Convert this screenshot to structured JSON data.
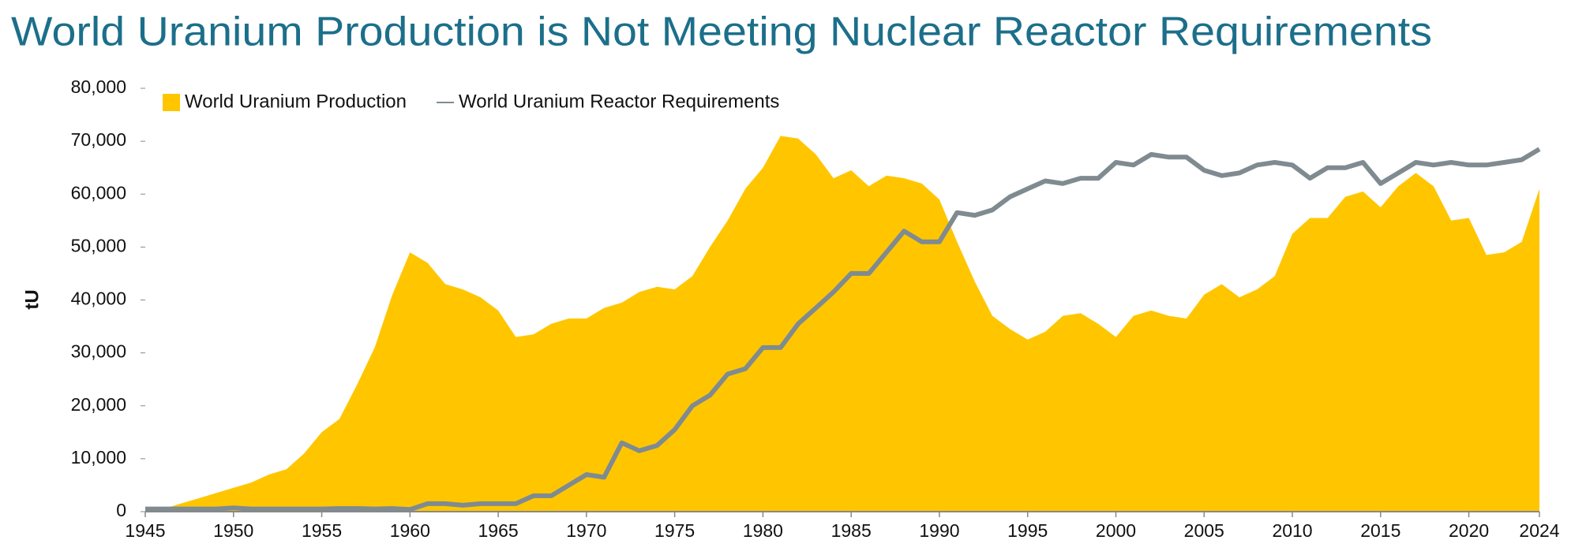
{
  "chart_data": {
    "type": "area-line",
    "title": "World Uranium Production is Not Meeting Nuclear Reactor Requirements",
    "y_label": "tU",
    "x": [
      1945,
      1946,
      1947,
      1948,
      1949,
      1950,
      1951,
      1952,
      1953,
      1954,
      1955,
      1956,
      1957,
      1958,
      1959,
      1960,
      1961,
      1962,
      1963,
      1964,
      1965,
      1966,
      1967,
      1968,
      1969,
      1970,
      1971,
      1972,
      1973,
      1974,
      1975,
      1976,
      1977,
      1978,
      1979,
      1980,
      1981,
      1982,
      1983,
      1984,
      1985,
      1986,
      1987,
      1988,
      1989,
      1990,
      1991,
      1992,
      1993,
      1994,
      1995,
      1996,
      1997,
      1998,
      1999,
      2000,
      2001,
      2002,
      2003,
      2004,
      2005,
      2006,
      2007,
      2008,
      2009,
      2010,
      2011,
      2012,
      2013,
      2014,
      2015,
      2016,
      2017,
      2018,
      2019,
      2020,
      2021,
      2022,
      2023,
      2024
    ],
    "series": [
      {
        "name": "World Uranium Production",
        "color": "#ffc600",
        "kind": "area",
        "values": [
          500,
          500,
          1500,
          2500,
          3500,
          4500,
          5500,
          7000,
          8000,
          11000,
          15000,
          17500,
          24000,
          31000,
          41000,
          49000,
          47000,
          43000,
          42000,
          40500,
          38000,
          33000,
          33500,
          35500,
          36500,
          36500,
          38500,
          39500,
          41500,
          42500,
          42000,
          44500,
          50000,
          55000,
          61000,
          65000,
          71000,
          70500,
          67500,
          63000,
          64500,
          61500,
          63500,
          63000,
          62000,
          59000,
          51000,
          43500,
          37000,
          34500,
          32500,
          34000,
          37000,
          37500,
          35500,
          33000,
          37000,
          38000,
          37000,
          36500,
          41000,
          43000,
          40500,
          42000,
          44500,
          52500,
          55500,
          55500,
          59500,
          60500,
          57500,
          61500,
          64000,
          61500,
          55000,
          55500,
          48500,
          49000,
          51000,
          61000
        ]
      },
      {
        "name": "World Uranium Reactor Requirements",
        "color": "#7f8b90",
        "kind": "line",
        "values": [
          500,
          500,
          500,
          500,
          500,
          700,
          500,
          500,
          500,
          500,
          500,
          600,
          600,
          500,
          600,
          400,
          1500,
          1500,
          1200,
          1500,
          1500,
          1500,
          3000,
          3000,
          5000,
          7000,
          6500,
          13000,
          11500,
          12500,
          15500,
          20000,
          22000,
          26000,
          27000,
          31000,
          31000,
          35500,
          38500,
          41500,
          45000,
          45000,
          49000,
          53000,
          51000,
          51000,
          56500,
          56000,
          57000,
          59500,
          61000,
          62500,
          62000,
          63000,
          63000,
          66000,
          65500,
          67500,
          67000,
          67000,
          64500,
          63500,
          64000,
          65500,
          66000,
          65500,
          63000,
          65000,
          65000,
          66000,
          62000,
          64000,
          66000,
          65500,
          66000,
          65500,
          65500,
          66000,
          66500,
          68500
        ]
      }
    ],
    "xlim": [
      1945,
      2024
    ],
    "xticks": [
      1945,
      1950,
      1955,
      1960,
      1965,
      1970,
      1975,
      1980,
      1985,
      1990,
      1995,
      2000,
      2005,
      2010,
      2015,
      2020,
      2024
    ],
    "ylim": [
      0,
      80000
    ],
    "yticks": [
      0,
      {
        "value": 10000,
        "label": "10,000"
      },
      {
        "value": 20000,
        "label": "20,000"
      },
      {
        "value": 30000,
        "label": "30,000"
      },
      {
        "value": 40000,
        "label": "40,000"
      },
      {
        "value": 50000,
        "label": "50,000"
      },
      {
        "value": 60000,
        "label": "60,000"
      },
      {
        "value": 70000,
        "label": "70,000"
      },
      {
        "value": 80000,
        "label": "80,000"
      }
    ],
    "grid": false,
    "legend": "top-left"
  }
}
